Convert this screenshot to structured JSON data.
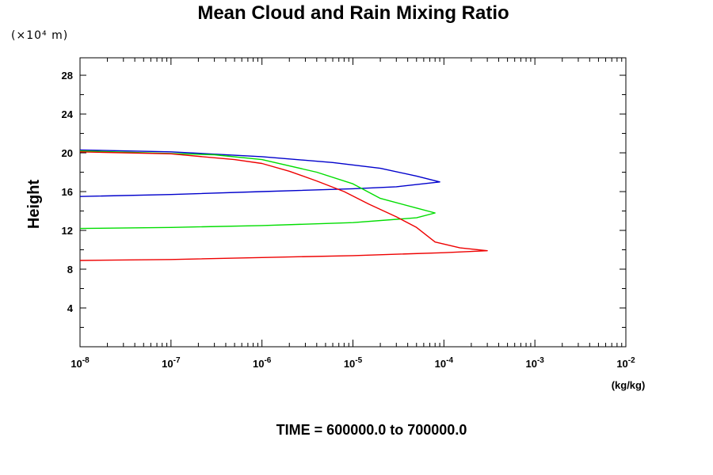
{
  "chart_data": {
    "type": "line",
    "title": "Mean Cloud and Rain Mixing Ratio",
    "y_unit_label": "(×10⁴ m)",
    "ylabel": "Height",
    "x_unit_label": "(kg/kg)",
    "footer": "TIME = 600000.0 to 700000.0",
    "xscale": "log",
    "xlim": [
      1e-08,
      0.01
    ],
    "ylim": [
      0,
      29.8
    ],
    "y_ticks": [
      4,
      8,
      12,
      16,
      20,
      24,
      28
    ],
    "x_ticks": [
      {
        "base": "10",
        "exp": "-8"
      },
      {
        "base": "10",
        "exp": "-7"
      },
      {
        "base": "10",
        "exp": "-6"
      },
      {
        "base": "10",
        "exp": "-5"
      },
      {
        "base": "10",
        "exp": "-4"
      },
      {
        "base": "10",
        "exp": "-3"
      },
      {
        "base": "10",
        "exp": "-2"
      }
    ],
    "grid": false,
    "series": [
      {
        "color": "#0000cc",
        "points": [
          [
            1e-08,
            20.3
          ],
          [
            1e-07,
            20.1
          ],
          [
            1e-06,
            19.6
          ],
          [
            6e-06,
            19.0
          ],
          [
            2e-05,
            18.4
          ],
          [
            5e-05,
            17.6
          ],
          [
            9e-05,
            17.0
          ],
          [
            3e-05,
            16.5
          ],
          [
            1e-05,
            16.3
          ],
          [
            1e-06,
            16.0
          ],
          [
            1e-07,
            15.7
          ],
          [
            1e-08,
            15.5
          ]
        ]
      },
      {
        "color": "#00dd00",
        "points": [
          [
            1e-08,
            20.2
          ],
          [
            3e-07,
            19.8
          ],
          [
            1e-06,
            19.3
          ],
          [
            4e-06,
            18.0
          ],
          [
            1e-05,
            16.8
          ],
          [
            2e-05,
            15.3
          ],
          [
            5e-05,
            14.3
          ],
          [
            8e-05,
            13.8
          ],
          [
            5e-05,
            13.3
          ],
          [
            1e-05,
            12.8
          ],
          [
            1e-06,
            12.5
          ],
          [
            1e-07,
            12.3
          ],
          [
            1e-08,
            12.2
          ]
        ]
      },
      {
        "color": "#ee0000",
        "points": [
          [
            1e-08,
            20.1
          ],
          [
            1e-07,
            19.9
          ],
          [
            5e-07,
            19.3
          ],
          [
            1e-06,
            18.9
          ],
          [
            2e-06,
            18.1
          ],
          [
            4e-06,
            17.1
          ],
          [
            8e-06,
            16.0
          ],
          [
            1.5e-05,
            14.7
          ],
          [
            3e-05,
            13.4
          ],
          [
            5e-05,
            12.3
          ],
          [
            8e-05,
            10.8
          ],
          [
            0.00015,
            10.2
          ],
          [
            0.0003,
            9.9
          ],
          [
            0.0001,
            9.7
          ],
          [
            1e-05,
            9.4
          ],
          [
            1e-06,
            9.2
          ],
          [
            1e-07,
            9.0
          ],
          [
            1e-08,
            8.9
          ]
        ]
      }
    ]
  }
}
